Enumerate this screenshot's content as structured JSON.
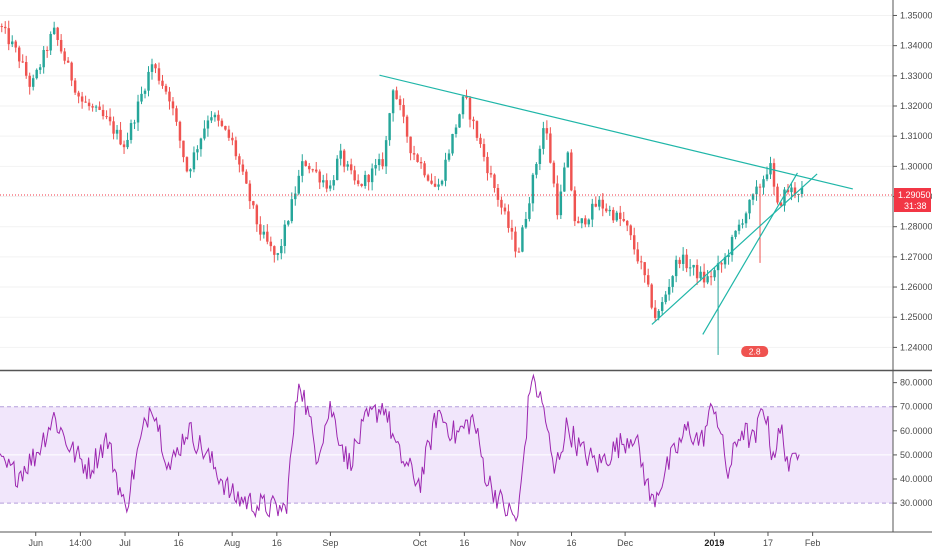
{
  "chart_data": [
    {
      "type": "candlestick",
      "title": "",
      "price_axis": {
        "ticks": [
          "1.35000",
          "1.34000",
          "1.33000",
          "1.32000",
          "1.31000",
          "1.30000",
          "1.29000",
          "1.28000",
          "1.27000",
          "1.26000",
          "1.25000",
          "1.24000"
        ],
        "ylim": [
          1.2335,
          1.3538
        ]
      },
      "current_price": {
        "value": "1.29050",
        "countdown": "31:38",
        "color": "#f23645"
      },
      "time_axis": {
        "labels": [
          {
            "label": "Jun",
            "t": 0.04,
            "bold": false
          },
          {
            "label": "14:00",
            "t": 0.09,
            "bold": false
          },
          {
            "label": "Jul",
            "t": 0.14,
            "bold": false
          },
          {
            "label": "16",
            "t": 0.2,
            "bold": false
          },
          {
            "label": "Aug",
            "t": 0.26,
            "bold": false
          },
          {
            "label": "16",
            "t": 0.31,
            "bold": false
          },
          {
            "label": "Sep",
            "t": 0.37,
            "bold": false
          },
          {
            "label": "Oct",
            "t": 0.47,
            "bold": false
          },
          {
            "label": "16",
            "t": 0.52,
            "bold": false
          },
          {
            "label": "Nov",
            "t": 0.58,
            "bold": false
          },
          {
            "label": "16",
            "t": 0.64,
            "bold": false
          },
          {
            "label": "Dec",
            "t": 0.7,
            "bold": false
          },
          {
            "label": "2019",
            "t": 0.8,
            "bold": true
          },
          {
            "label": "17",
            "t": 0.86,
            "bold": false
          },
          {
            "label": "Feb",
            "t": 0.91,
            "bold": false
          }
        ]
      },
      "candle_count": 230,
      "price_path": [
        [
          0,
          1.3465
        ],
        [
          0.02,
          1.337
        ],
        [
          0.035,
          1.326
        ],
        [
          0.06,
          1.345
        ],
        [
          0.09,
          1.322
        ],
        [
          0.12,
          1.315
        ],
        [
          0.14,
          1.307
        ],
        [
          0.17,
          1.334
        ],
        [
          0.19,
          1.323
        ],
        [
          0.21,
          1.298
        ],
        [
          0.235,
          1.318
        ],
        [
          0.26,
          1.308
        ],
        [
          0.29,
          1.279
        ],
        [
          0.31,
          1.269
        ],
        [
          0.34,
          1.302
        ],
        [
          0.37,
          1.293
        ],
        [
          0.38,
          1.304
        ],
        [
          0.4,
          1.293
        ],
        [
          0.43,
          1.302
        ],
        [
          0.44,
          1.327
        ],
        [
          0.46,
          1.306
        ],
        [
          0.49,
          1.292
        ],
        [
          0.51,
          1.313
        ],
        [
          0.52,
          1.323
        ],
        [
          0.55,
          1.296
        ],
        [
          0.58,
          1.271
        ],
        [
          0.61,
          1.315
        ],
        [
          0.625,
          1.284
        ],
        [
          0.635,
          1.305
        ],
        [
          0.645,
          1.279
        ],
        [
          0.67,
          1.288
        ],
        [
          0.7,
          1.281
        ],
        [
          0.72,
          1.265
        ],
        [
          0.735,
          1.249
        ],
        [
          0.76,
          1.27
        ],
        [
          0.79,
          1.262
        ],
        [
          0.81,
          1.268
        ],
        [
          0.83,
          1.282
        ],
        [
          0.85,
          1.293
        ],
        [
          0.862,
          1.301
        ],
        [
          0.87,
          1.286
        ],
        [
          0.88,
          1.292
        ]
      ],
      "spikes": [
        {
          "t": 0.805,
          "low": 1.2375
        },
        {
          "t": 0.85,
          "low": 1.268
        }
      ],
      "trendlines": [
        {
          "name": "descending resistance",
          "from": {
            "t": 0.425,
            "price": 1.3302
          },
          "to": {
            "t": 0.955,
            "price": 1.2925
          }
        },
        {
          "name": "rising support 1",
          "from": {
            "t": 0.73,
            "price": 1.2476
          },
          "to": {
            "t": 0.915,
            "price": 1.2975
          }
        },
        {
          "name": "rising support 2",
          "from": {
            "t": 0.787,
            "price": 1.2443
          },
          "to": {
            "t": 0.893,
            "price": 1.2978
          }
        }
      ],
      "colors": {
        "up": "#26a69a",
        "down": "#ef5350",
        "trendline": "#1fb6a8",
        "price_line": "#f23645"
      },
      "badge": {
        "label": "2.8",
        "color": "#ef5350"
      }
    },
    {
      "type": "line",
      "name": "",
      "axis": {
        "ticks": [
          "80.0000",
          "70.0000",
          "60.0000",
          "50.0000",
          "40.0000",
          "30.0000"
        ],
        "ylim": [
          18,
          84
        ]
      },
      "band": {
        "upper": 70,
        "lower": 30,
        "fill": "#e8d5f8"
      },
      "color": "#9c27b0",
      "path": [
        [
          0,
          46
        ],
        [
          0.02,
          42
        ],
        [
          0.04,
          50
        ],
        [
          0.06,
          66
        ],
        [
          0.08,
          52
        ],
        [
          0.1,
          44
        ],
        [
          0.12,
          57
        ],
        [
          0.14,
          27
        ],
        [
          0.155,
          52
        ],
        [
          0.17,
          73
        ],
        [
          0.19,
          44
        ],
        [
          0.21,
          61
        ],
        [
          0.235,
          48
        ],
        [
          0.26,
          33
        ],
        [
          0.29,
          29
        ],
        [
          0.32,
          27
        ],
        [
          0.335,
          83
        ],
        [
          0.355,
          50
        ],
        [
          0.37,
          70
        ],
        [
          0.39,
          46
        ],
        [
          0.41,
          64
        ],
        [
          0.43,
          71
        ],
        [
          0.445,
          51
        ],
        [
          0.47,
          38
        ],
        [
          0.49,
          68
        ],
        [
          0.51,
          58
        ],
        [
          0.53,
          65
        ],
        [
          0.545,
          40
        ],
        [
          0.565,
          28
        ],
        [
          0.58,
          23
        ],
        [
          0.595,
          84
        ],
        [
          0.61,
          68
        ],
        [
          0.62,
          42
        ],
        [
          0.635,
          62
        ],
        [
          0.65,
          52
        ],
        [
          0.67,
          46
        ],
        [
          0.69,
          53
        ],
        [
          0.71,
          59
        ],
        [
          0.73,
          30
        ],
        [
          0.75,
          47
        ],
        [
          0.77,
          61
        ],
        [
          0.785,
          55
        ],
        [
          0.8,
          72
        ],
        [
          0.815,
          42
        ],
        [
          0.83,
          61
        ],
        [
          0.845,
          55
        ],
        [
          0.855,
          72
        ],
        [
          0.865,
          50
        ],
        [
          0.875,
          60
        ],
        [
          0.885,
          43
        ],
        [
          0.895,
          55
        ]
      ]
    }
  ]
}
